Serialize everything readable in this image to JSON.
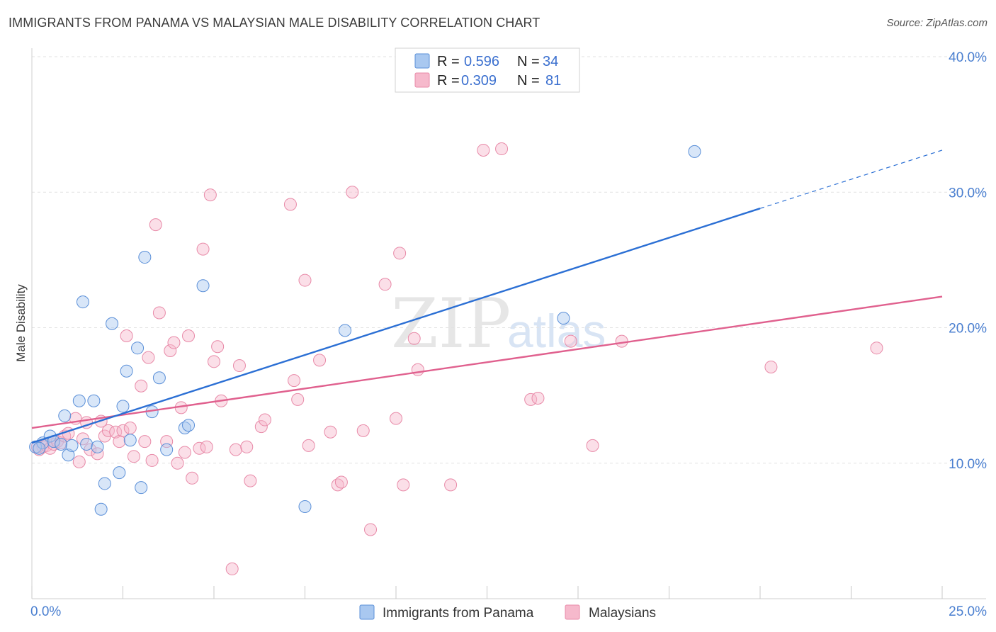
{
  "title": "IMMIGRANTS FROM PANAMA VS MALAYSIAN MALE DISABILITY CORRELATION CHART",
  "source": "Source: ZipAtlas.com",
  "watermark": {
    "zip": "ZIP",
    "atlas": "atlas"
  },
  "legend": {
    "r_label": "R =",
    "n_label": "N =",
    "rows": [
      {
        "r": "0.596",
        "n": "34"
      },
      {
        "r": "0.309",
        "n": "81"
      }
    ]
  },
  "colors": {
    "panama_fill": "#a9c8f0",
    "panama_stroke": "#5a8fd8",
    "panama_line": "#2b6fd4",
    "malay_fill": "#f6b9cc",
    "malay_stroke": "#e88aa8",
    "malay_line": "#e0608e",
    "axis_label": "#4a7fd0"
  },
  "chart_data": {
    "type": "scatter",
    "title": "IMMIGRANTS FROM PANAMA VS MALAYSIAN MALE DISABILITY CORRELATION CHART",
    "xlabel": "",
    "ylabel": "Male Disability",
    "xlim": [
      0,
      25
    ],
    "ylim": [
      0,
      40
    ],
    "x_tick_labels": [
      "0.0%",
      "25.0%"
    ],
    "y_ticks": [
      10,
      20,
      30,
      40
    ],
    "y_tick_labels": [
      "10.0%",
      "20.0%",
      "30.0%",
      "40.0%"
    ],
    "grid": true,
    "legend_position": "top-center",
    "series": [
      {
        "name": "Immigrants from Panama",
        "r": 0.596,
        "n": 34,
        "trend": {
          "x0": 0,
          "y0": 11.5,
          "x1": 20,
          "y1": 28.8,
          "dash_to_x": 25,
          "dash_to_y": 33.1
        },
        "points": [
          [
            0.1,
            11.2
          ],
          [
            0.3,
            11.5
          ],
          [
            0.5,
            12.0
          ],
          [
            0.6,
            11.6
          ],
          [
            0.8,
            11.4
          ],
          [
            0.9,
            13.5
          ],
          [
            1.0,
            10.6
          ],
          [
            1.1,
            11.3
          ],
          [
            1.3,
            14.6
          ],
          [
            1.4,
            21.9
          ],
          [
            1.5,
            11.4
          ],
          [
            1.7,
            14.6
          ],
          [
            1.8,
            11.2
          ],
          [
            1.9,
            6.6
          ],
          [
            2.0,
            8.5
          ],
          [
            2.2,
            20.3
          ],
          [
            2.4,
            9.3
          ],
          [
            2.5,
            14.2
          ],
          [
            2.6,
            16.8
          ],
          [
            2.7,
            11.7
          ],
          [
            2.9,
            18.5
          ],
          [
            3.0,
            8.2
          ],
          [
            3.1,
            25.2
          ],
          [
            3.3,
            13.8
          ],
          [
            3.5,
            16.3
          ],
          [
            3.7,
            11.0
          ],
          [
            4.2,
            12.6
          ],
          [
            4.3,
            12.8
          ],
          [
            4.7,
            23.1
          ],
          [
            7.5,
            6.8
          ],
          [
            8.6,
            19.8
          ],
          [
            14.6,
            20.7
          ],
          [
            18.2,
            33.0
          ],
          [
            0.2,
            11.1
          ]
        ]
      },
      {
        "name": "Malaysians",
        "r": 0.309,
        "n": 81,
        "trend": {
          "x0": 0,
          "y0": 12.6,
          "x1": 25,
          "y1": 22.3
        },
        "points": [
          [
            0.2,
            11.0
          ],
          [
            0.3,
            11.2
          ],
          [
            0.4,
            11.3
          ],
          [
            0.5,
            11.1
          ],
          [
            0.6,
            11.4
          ],
          [
            0.7,
            11.6
          ],
          [
            0.8,
            11.5
          ],
          [
            0.9,
            12.0
          ],
          [
            1.0,
            12.2
          ],
          [
            1.2,
            13.3
          ],
          [
            1.3,
            10.1
          ],
          [
            1.4,
            11.8
          ],
          [
            1.5,
            13.0
          ],
          [
            1.6,
            11.0
          ],
          [
            1.8,
            10.7
          ],
          [
            1.9,
            13.1
          ],
          [
            2.0,
            12.0
          ],
          [
            2.1,
            12.4
          ],
          [
            2.3,
            12.3
          ],
          [
            2.4,
            11.6
          ],
          [
            2.5,
            12.4
          ],
          [
            2.6,
            19.4
          ],
          [
            2.7,
            12.6
          ],
          [
            2.8,
            10.5
          ],
          [
            3.0,
            15.7
          ],
          [
            3.1,
            11.6
          ],
          [
            3.2,
            17.8
          ],
          [
            3.3,
            10.2
          ],
          [
            3.4,
            27.6
          ],
          [
            3.5,
            21.1
          ],
          [
            3.7,
            11.6
          ],
          [
            3.8,
            18.3
          ],
          [
            3.9,
            18.9
          ],
          [
            4.0,
            10.0
          ],
          [
            4.1,
            14.1
          ],
          [
            4.2,
            10.8
          ],
          [
            4.3,
            19.4
          ],
          [
            4.4,
            8.9
          ],
          [
            4.6,
            11.1
          ],
          [
            4.7,
            25.8
          ],
          [
            4.8,
            11.2
          ],
          [
            4.9,
            29.8
          ],
          [
            5.0,
            17.5
          ],
          [
            5.1,
            18.6
          ],
          [
            5.2,
            14.6
          ],
          [
            5.5,
            2.2
          ],
          [
            5.6,
            11.0
          ],
          [
            5.7,
            17.2
          ],
          [
            5.9,
            11.2
          ],
          [
            6.0,
            8.7
          ],
          [
            6.3,
            12.7
          ],
          [
            6.4,
            13.2
          ],
          [
            7.1,
            29.1
          ],
          [
            7.2,
            16.1
          ],
          [
            7.3,
            14.7
          ],
          [
            7.5,
            23.5
          ],
          [
            7.6,
            11.3
          ],
          [
            7.9,
            17.6
          ],
          [
            8.2,
            12.3
          ],
          [
            8.4,
            8.4
          ],
          [
            8.5,
            8.6
          ],
          [
            8.8,
            30.0
          ],
          [
            9.1,
            12.4
          ],
          [
            9.3,
            5.1
          ],
          [
            9.7,
            23.2
          ],
          [
            10.0,
            13.3
          ],
          [
            10.1,
            25.5
          ],
          [
            10.2,
            8.4
          ],
          [
            10.5,
            19.2
          ],
          [
            10.6,
            16.9
          ],
          [
            11.5,
            8.4
          ],
          [
            12.4,
            33.1
          ],
          [
            12.9,
            33.2
          ],
          [
            13.7,
            14.7
          ],
          [
            13.9,
            14.8
          ],
          [
            14.8,
            19.0
          ],
          [
            15.4,
            11.3
          ],
          [
            16.2,
            19.0
          ],
          [
            20.3,
            17.1
          ],
          [
            23.2,
            18.5
          ],
          [
            0.15,
            11.2
          ]
        ]
      }
    ]
  }
}
